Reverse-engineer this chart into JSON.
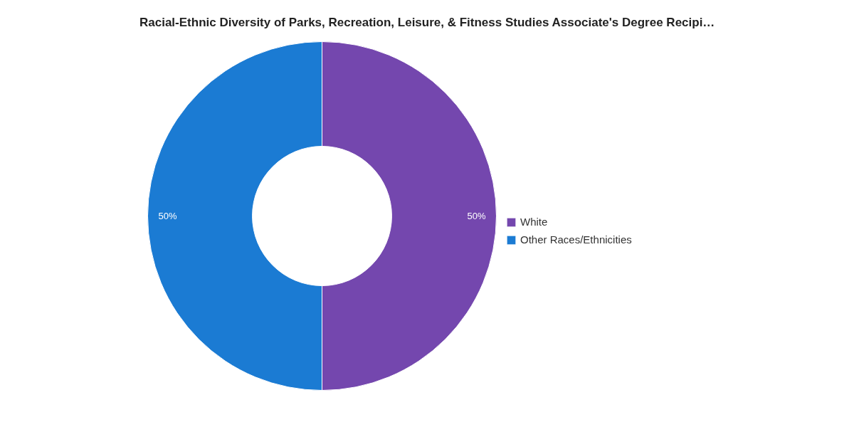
{
  "chart_data": {
    "type": "donut",
    "title": "Racial-Ethnic Diversity of Parks, Recreation, Leisure, & Fitness Studies Associate's Degree Recipi…",
    "categories": [
      "White",
      "Other Races/Ethnicities"
    ],
    "values": [
      50,
      50
    ],
    "colors": [
      "#7447ae",
      "#1b7bd3"
    ],
    "value_labels": [
      "50%",
      "50%"
    ],
    "legend": "right"
  }
}
